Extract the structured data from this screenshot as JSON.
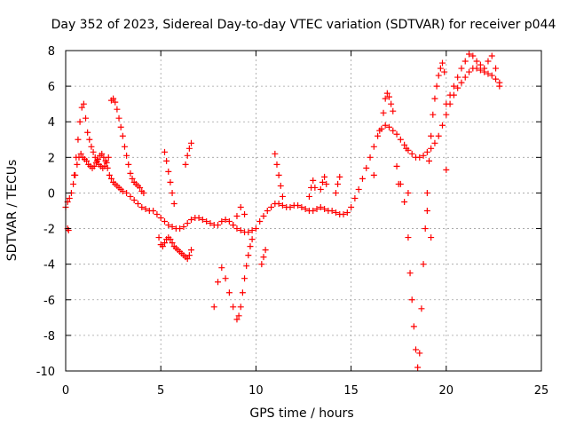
{
  "chart_data": {
    "type": "scatter",
    "title": "Day 352 of 2023, Sidereal Day-to-day VTEC variation (SDTVAR) for receiver p044",
    "xlabel": "GPS time / hours",
    "ylabel": "SDTVAR / TECUs",
    "xlim": [
      0,
      25
    ],
    "ylim": [
      -10,
      8
    ],
    "xticks": [
      "0",
      "5",
      "10",
      "15",
      "20",
      "25"
    ],
    "yticks": [
      "8",
      "6",
      "4",
      "2",
      "0",
      "-2",
      "-4",
      "-6",
      "-8",
      "-10"
    ],
    "grid": true,
    "marker": "+",
    "color": "#ff0000",
    "series": [
      {
        "name": "main",
        "x": [
          0.0,
          0.1,
          0.2,
          0.3,
          0.4,
          0.5,
          0.6,
          0.7,
          0.8,
          0.9,
          1.0,
          1.1,
          1.2,
          1.3,
          1.4,
          1.5,
          1.6,
          1.7,
          1.8,
          1.9,
          2.0,
          2.1,
          2.2,
          2.3,
          2.4,
          2.5,
          2.6,
          2.7,
          2.8,
          2.9,
          3.0,
          3.2,
          3.4,
          3.6,
          3.8,
          4.0,
          4.2,
          4.4,
          4.6,
          4.8,
          5.0,
          5.2,
          5.4,
          5.6,
          5.8,
          6.0,
          6.2,
          6.4,
          6.6,
          6.8,
          7.0,
          7.2,
          7.4,
          7.6,
          7.8,
          8.0,
          8.2,
          8.4,
          8.6,
          8.8,
          9.0,
          9.2,
          9.4,
          9.6,
          9.8,
          10.0,
          10.2,
          10.4,
          10.6,
          10.8,
          11.0,
          11.2,
          11.4,
          11.6,
          11.8,
          12.0,
          12.2,
          12.4,
          12.6,
          12.8,
          13.0,
          13.2,
          13.4,
          13.6,
          13.8,
          14.0,
          14.2,
          14.4,
          14.6,
          14.8,
          15.0,
          15.2,
          15.4,
          15.6,
          15.8,
          16.0,
          16.2,
          16.4,
          16.6,
          16.8,
          17.0,
          17.2,
          17.4,
          17.6,
          17.8,
          18.0,
          18.2,
          18.4,
          18.6,
          18.8,
          19.0,
          19.2,
          19.4,
          19.6,
          19.8,
          20.0,
          20.2,
          20.4,
          20.6,
          20.8,
          21.0,
          21.2,
          21.4,
          21.6,
          21.8,
          22.0,
          22.2,
          22.4,
          22.6,
          22.8
        ],
        "y": [
          -0.8,
          -0.5,
          -0.3,
          0.0,
          0.5,
          1.0,
          1.6,
          2.0,
          2.2,
          2.0,
          1.9,
          1.8,
          1.6,
          1.5,
          1.4,
          1.5,
          1.7,
          1.9,
          2.1,
          2.2,
          2.0,
          1.8,
          1.4,
          1.0,
          0.8,
          0.6,
          0.5,
          0.4,
          0.3,
          0.2,
          0.1,
          0.0,
          -0.2,
          -0.4,
          -0.6,
          -0.8,
          -0.9,
          -1.0,
          -1.0,
          -1.2,
          -1.4,
          -1.6,
          -1.8,
          -1.9,
          -2.0,
          -2.0,
          -1.9,
          -1.7,
          -1.5,
          -1.4,
          -1.4,
          -1.5,
          -1.6,
          -1.7,
          -1.8,
          -1.8,
          -1.6,
          -1.5,
          -1.6,
          -1.8,
          -2.0,
          -2.1,
          -2.2,
          -2.2,
          -2.1,
          -2.0,
          -1.6,
          -1.3,
          -1.0,
          -0.8,
          -0.6,
          -0.6,
          -0.7,
          -0.8,
          -0.8,
          -0.7,
          -0.7,
          -0.8,
          -0.9,
          -1.0,
          -1.0,
          -0.9,
          -0.8,
          -0.9,
          -1.0,
          -1.0,
          -1.1,
          -1.2,
          -1.2,
          -1.1,
          -0.8,
          -0.3,
          0.2,
          0.8,
          1.4,
          2.0,
          2.6,
          3.2,
          3.6,
          3.8,
          3.7,
          3.5,
          3.3,
          3.0,
          2.7,
          2.4,
          2.2,
          2.0,
          2.0,
          2.1,
          2.3,
          2.5,
          2.8,
          3.2,
          3.8,
          4.4,
          5.0,
          5.5,
          5.9,
          6.2,
          6.5,
          6.8,
          7.0,
          7.0,
          6.9,
          6.8,
          6.7,
          6.6,
          6.4,
          6.2
        ]
      },
      {
        "name": "early-spikes",
        "x": [
          0.45,
          0.55,
          0.65,
          0.75,
          0.85,
          0.95,
          1.05,
          1.15,
          1.25,
          1.35,
          1.45,
          1.55,
          1.65,
          1.75,
          1.85,
          1.95,
          2.05,
          2.15,
          2.25,
          2.4,
          2.5,
          2.6,
          2.7,
          2.8,
          2.9,
          3.0,
          3.1,
          3.2,
          3.3,
          3.4,
          3.5,
          3.6,
          3.7,
          3.8,
          3.9,
          4.0,
          4.1
        ],
        "y": [
          1.0,
          2.0,
          3.0,
          4.0,
          4.8,
          5.0,
          4.2,
          3.4,
          3.0,
          2.6,
          2.3,
          2.0,
          1.8,
          1.6,
          1.5,
          1.4,
          1.5,
          1.7,
          2.0,
          5.2,
          5.3,
          5.1,
          4.7,
          4.2,
          3.7,
          3.2,
          2.6,
          2.1,
          1.6,
          1.1,
          0.8,
          0.6,
          0.5,
          0.4,
          0.3,
          0.1,
          0.0
        ]
      },
      {
        "name": "mid-dips",
        "x": [
          4.9,
          5.0,
          5.1,
          5.2,
          5.3,
          5.4,
          5.5,
          5.6,
          5.7,
          5.8,
          5.9,
          6.0,
          6.1,
          6.2,
          6.3,
          6.4,
          6.5,
          6.6,
          7.8,
          8.0,
          8.2,
          8.4,
          8.6,
          8.8,
          9.0,
          9.1,
          9.2,
          9.3,
          9.4,
          9.5,
          9.6,
          9.7,
          9.8
        ],
        "y": [
          -2.5,
          -2.9,
          -3.0,
          -2.8,
          -2.6,
          -2.5,
          -2.6,
          -2.8,
          -3.0,
          -3.1,
          -3.2,
          -3.3,
          -3.4,
          -3.5,
          -3.6,
          -3.7,
          -3.5,
          -3.2,
          -6.4,
          -5.0,
          -4.2,
          -4.8,
          -5.6,
          -6.4,
          -7.1,
          -6.9,
          -6.4,
          -5.6,
          -4.8,
          -4.1,
          -3.5,
          -3.0,
          -2.6
        ]
      },
      {
        "name": "mid-rises",
        "x": [
          5.2,
          5.3,
          5.4,
          5.5,
          5.6,
          5.7,
          6.3,
          6.4,
          6.5,
          6.6,
          8.8,
          9.0,
          9.2,
          9.4,
          10.3,
          10.4,
          10.5,
          11.0,
          11.1,
          11.2,
          11.3,
          11.4,
          12.8,
          12.9,
          13.0,
          13.1,
          13.4,
          13.5,
          13.6,
          13.7,
          14.2,
          14.3,
          14.4
        ],
        "y": [
          2.3,
          1.8,
          1.2,
          0.6,
          0.0,
          -0.6,
          1.6,
          2.1,
          2.5,
          2.8,
          -1.8,
          -1.3,
          -0.8,
          -1.2,
          -4.0,
          -3.6,
          -3.2,
          2.2,
          1.6,
          1.0,
          0.4,
          -0.2,
          -0.2,
          0.3,
          0.7,
          0.3,
          0.2,
          0.6,
          0.9,
          0.5,
          0.0,
          0.5,
          0.9
        ]
      },
      {
        "name": "late-excursions",
        "x": [
          16.7,
          16.8,
          16.9,
          17.0,
          17.1,
          17.2,
          17.4,
          17.6,
          17.8,
          18.0,
          18.1,
          18.2,
          18.3,
          18.4,
          18.5,
          18.6,
          18.7,
          18.8,
          18.9,
          19.0,
          19.1,
          19.2,
          19.3,
          19.4,
          19.5,
          19.6,
          19.7,
          19.8,
          19.9,
          20.0,
          20.2,
          20.4,
          20.6,
          20.8,
          21.0,
          21.2,
          21.4,
          21.6,
          21.8,
          22.0,
          22.2,
          22.4,
          22.6,
          22.8
        ],
        "y": [
          4.5,
          5.3,
          5.6,
          5.4,
          5.0,
          4.6,
          1.5,
          0.5,
          -0.5,
          -2.5,
          -4.5,
          -6.0,
          -7.5,
          -8.8,
          -9.8,
          -9.0,
          -6.5,
          -4.0,
          -2.0,
          0.0,
          1.8,
          3.2,
          4.4,
          5.3,
          6.0,
          6.6,
          7.0,
          7.3,
          6.8,
          5.0,
          5.5,
          6.0,
          6.5,
          7.0,
          7.4,
          7.8,
          7.7,
          7.4,
          7.2,
          7.0,
          7.4,
          7.7,
          7.0,
          6.0
        ]
      },
      {
        "name": "outliers",
        "x": [
          0.1,
          0.15,
          20.0,
          19.2,
          19.0,
          18.0,
          17.9,
          17.5,
          16.5,
          16.2
        ],
        "y": [
          -2.0,
          -2.1,
          1.3,
          -2.5,
          -1.0,
          0.0,
          2.5,
          0.5,
          3.5,
          1.0
        ]
      }
    ]
  }
}
